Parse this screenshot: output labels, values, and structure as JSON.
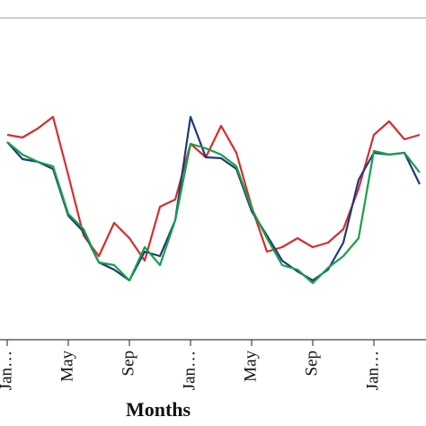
{
  "chart_data": {
    "type": "line",
    "x_label": "Months",
    "categories": [
      "Jan…",
      null,
      null,
      null,
      "May",
      null,
      null,
      null,
      "Sep",
      null,
      null,
      null,
      "Jan…",
      null,
      null,
      null,
      "May",
      null,
      null,
      null,
      "Sep",
      null,
      null,
      null,
      "Jan…",
      null,
      null,
      null
    ],
    "ylim": [
      0,
      380
    ],
    "series": [
      {
        "color": "#d62d2d",
        "values": [
          230,
          227,
          237,
          250,
          185,
          118,
          95,
          132,
          115,
          90,
          150,
          158,
          220,
          205,
          240,
          210,
          150,
          100,
          105,
          115,
          105,
          110,
          125,
          170,
          230,
          245,
          225,
          230
        ]
      },
      {
        "color": "#1f3a78",
        "values": [
          222,
          203,
          200,
          192,
          140,
          122,
          88,
          80,
          68,
          100,
          95,
          135,
          250,
          205,
          204,
          192,
          145,
          118,
          90,
          78,
          68,
          80,
          110,
          180,
          210,
          208,
          210,
          175
        ]
      },
      {
        "color": "#17a04a",
        "values": [
          222,
          208,
          200,
          195,
          142,
          125,
          88,
          85,
          68,
          105,
          85,
          135,
          220,
          215,
          208,
          195,
          148,
          115,
          85,
          80,
          65,
          82,
          95,
          115,
          212,
          208,
          210,
          188
        ]
      }
    ]
  }
}
